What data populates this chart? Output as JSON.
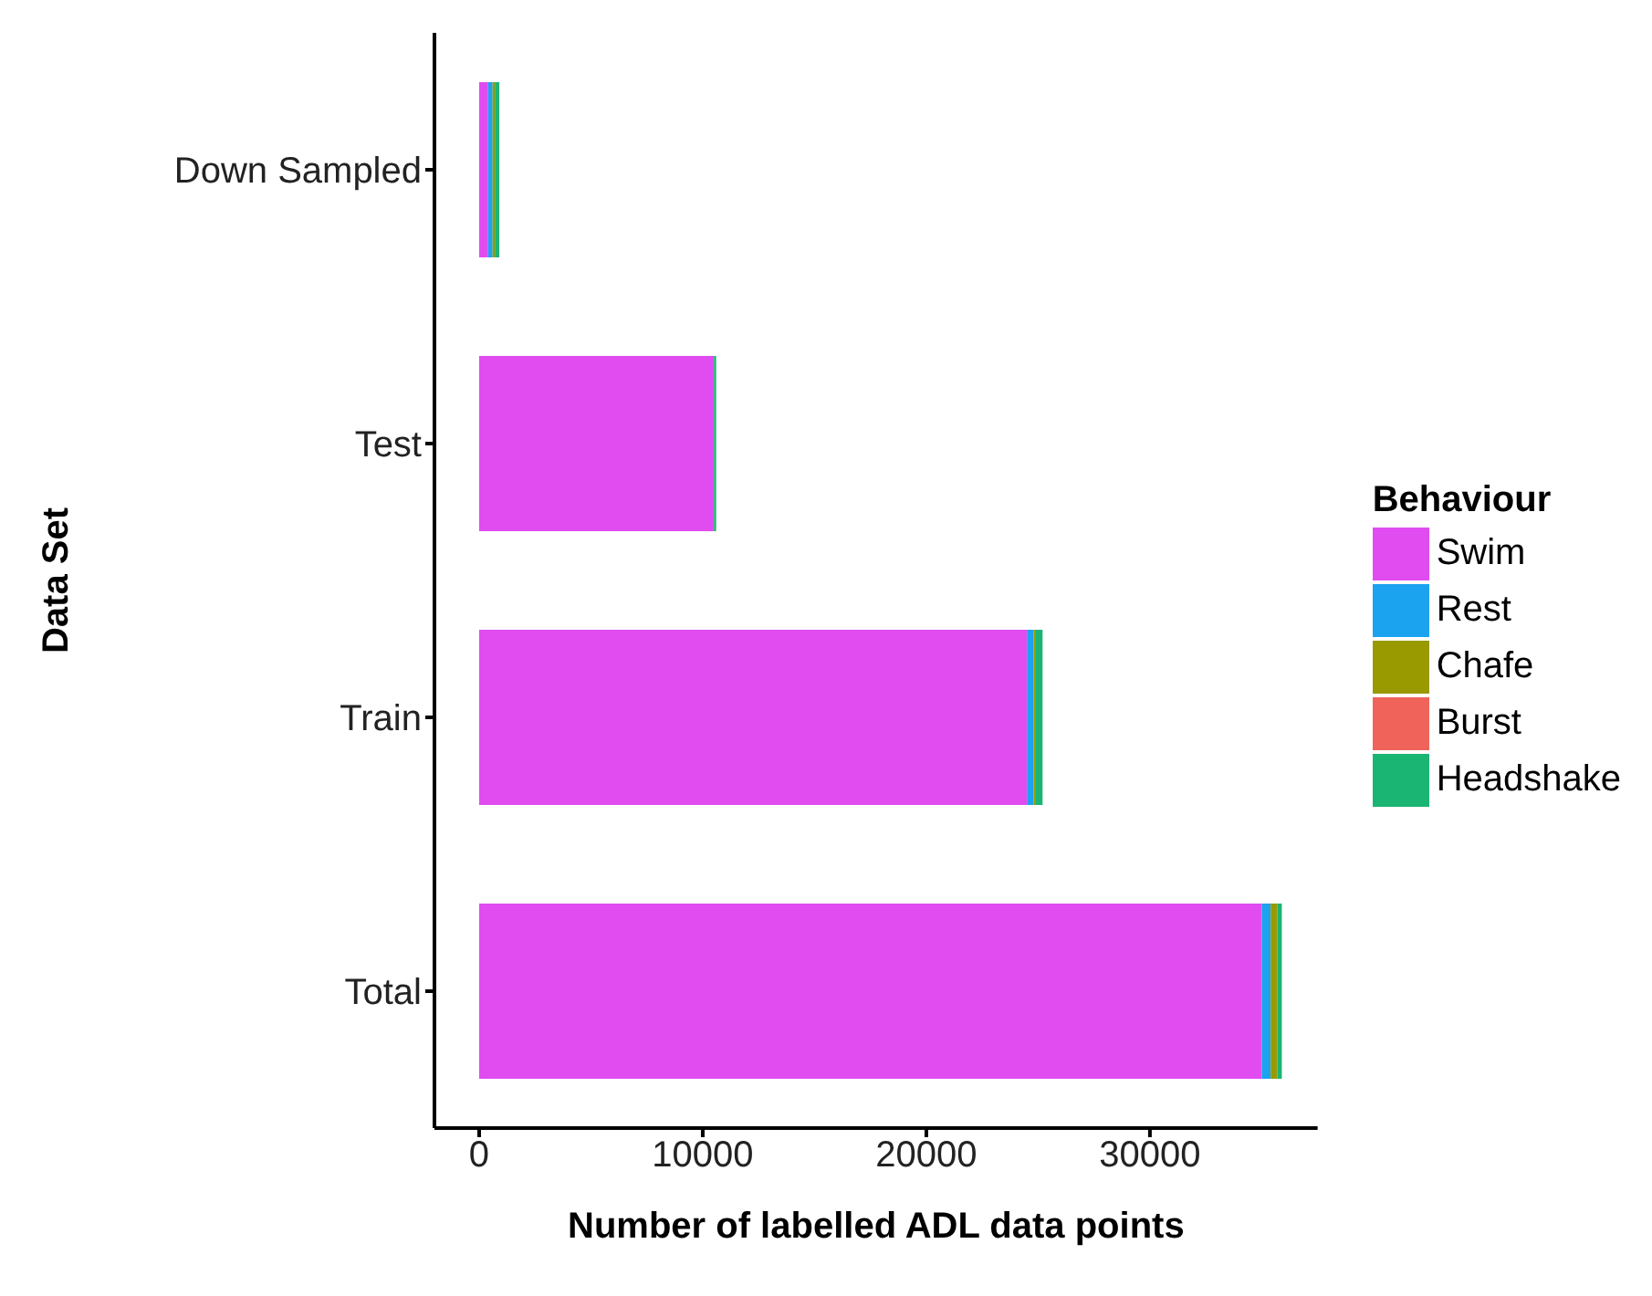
{
  "chart_data": {
    "type": "bar",
    "orientation": "horizontal",
    "stacked": true,
    "xlabel": "Number of labelled ADL data points",
    "ylabel": "Data Set",
    "legend_title": "Behaviour",
    "legend": "right",
    "grid": false,
    "categories": [
      "Down Sampled",
      "Test",
      "Train",
      "Total"
    ],
    "series": [
      {
        "name": "Swim",
        "color": "#e04cf0",
        "values": [
          400,
          10500,
          24500,
          35000
        ]
      },
      {
        "name": "Rest",
        "color": "#1ba3f0",
        "values": [
          200,
          null,
          300,
          400
        ]
      },
      {
        "name": "Chafe",
        "color": "#999900",
        "values": [
          100,
          null,
          100,
          300
        ]
      },
      {
        "name": "Burst",
        "color": "#f0635a",
        "values": [
          null,
          null,
          null,
          null
        ]
      },
      {
        "name": "Headshake",
        "color": "#1bb573",
        "values": [
          200,
          100,
          300,
          200
        ]
      }
    ],
    "xlim": [
      -2000,
      37500
    ],
    "xticks": [
      0,
      10000,
      20000,
      30000
    ]
  }
}
